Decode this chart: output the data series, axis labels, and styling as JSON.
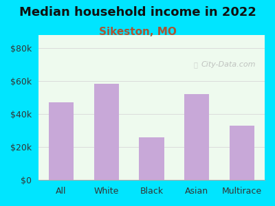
{
  "title": "Median household income in 2022",
  "subtitle": "Sikeston, MO",
  "categories": [
    "All",
    "White",
    "Black",
    "Asian",
    "Multirace"
  ],
  "values": [
    47000,
    58500,
    26000,
    52000,
    33000
  ],
  "bar_color": "#c8a8d8",
  "title_fontsize": 13,
  "subtitle_fontsize": 11,
  "subtitle_color": "#aa5533",
  "tick_fontsize": 9,
  "ytick_labels": [
    "$0",
    "$20k",
    "$40k",
    "$60k",
    "$80k"
  ],
  "ytick_values": [
    0,
    20000,
    40000,
    60000,
    80000
  ],
  "ylim": [
    0,
    88000
  ],
  "background_outer": "#00e5ff",
  "background_inner_top": "#e8f8e8",
  "background_inner_bottom": "#f8f8ff",
  "watermark_text": "City-Data.com",
  "grid_color": "#cccccc"
}
